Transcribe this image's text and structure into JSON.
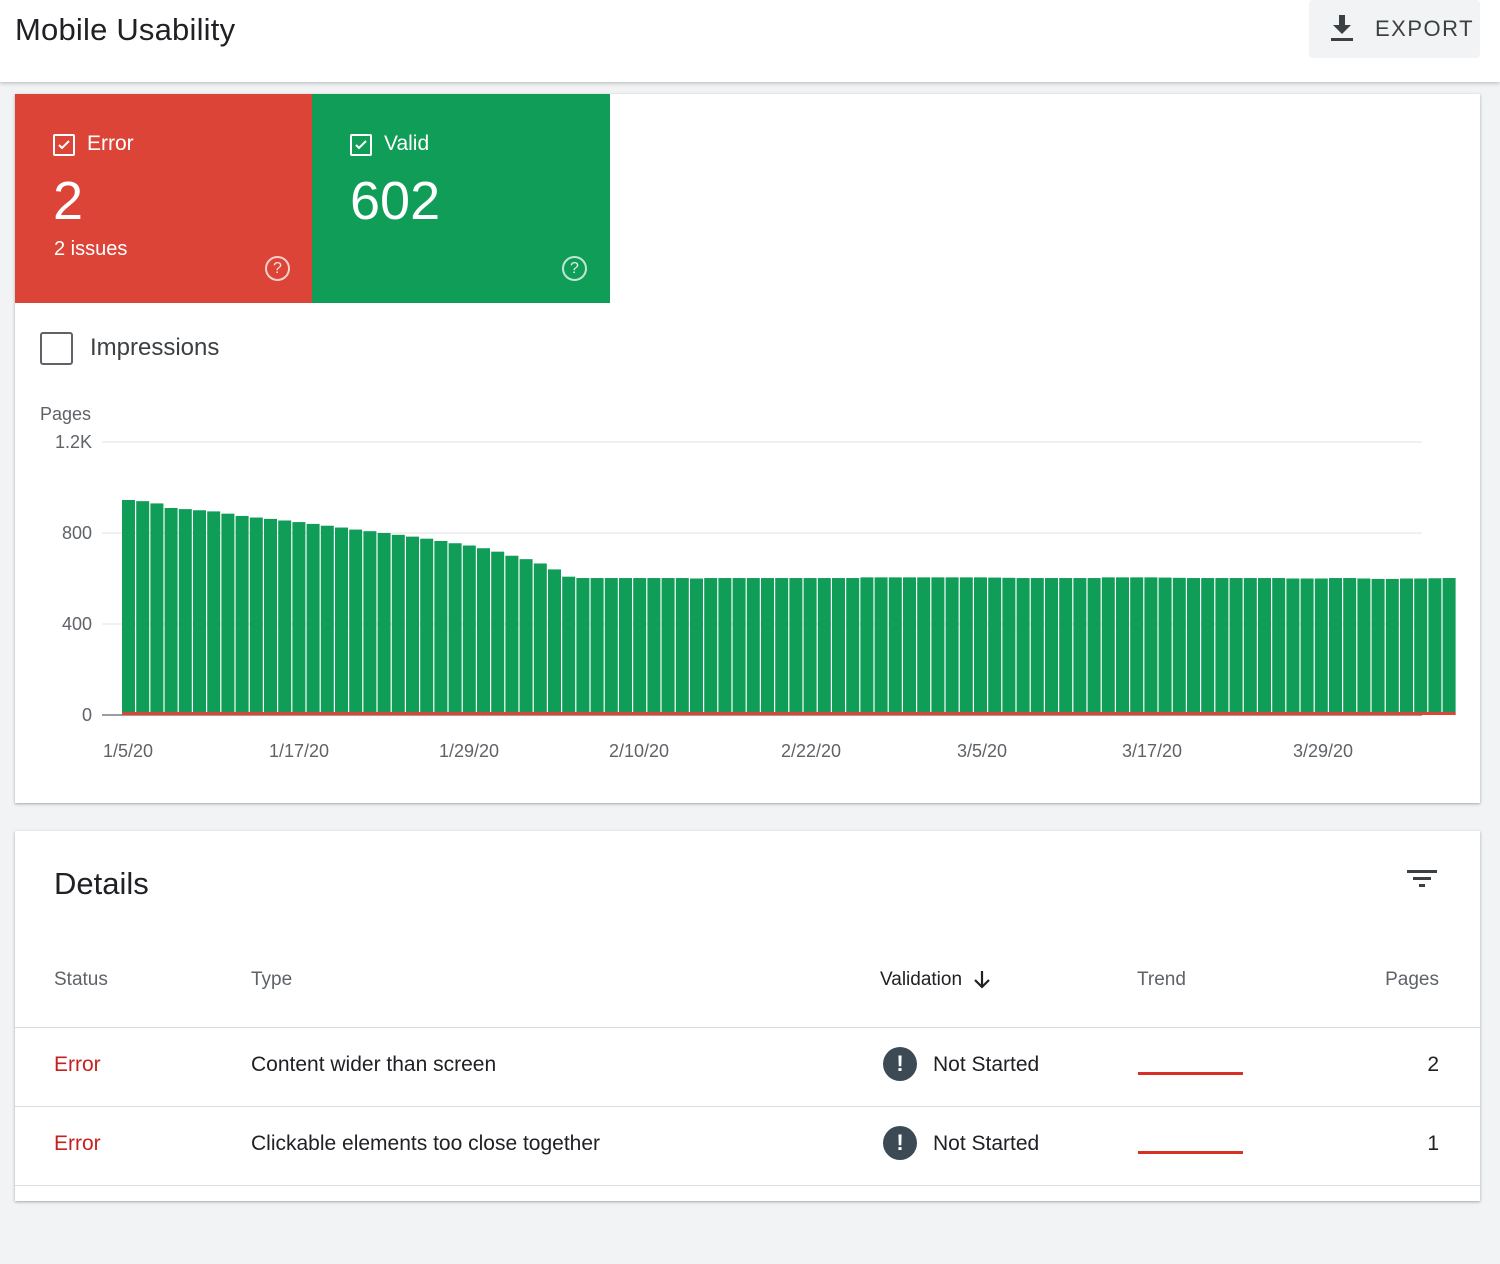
{
  "header": {
    "title": "Mobile Usability",
    "export_label": "EXPORT"
  },
  "summary": {
    "error": {
      "label": "Error",
      "value": "2",
      "sub": "2 issues",
      "help": "?"
    },
    "valid": {
      "label": "Valid",
      "value": "602",
      "help": "?"
    }
  },
  "impressions": {
    "label": "Impressions",
    "checked": false
  },
  "chart_data": {
    "type": "bar",
    "ylabel": "Pages",
    "ylim": [
      0,
      1200
    ],
    "yticks": [
      "1.2K",
      "800",
      "400",
      "0"
    ],
    "xtick_labels": [
      "1/5/20",
      "1/17/20",
      "1/29/20",
      "2/10/20",
      "2/22/20",
      "3/5/20",
      "3/17/20",
      "3/29/20"
    ],
    "series": [
      {
        "name": "Valid",
        "color": "#0f9d58",
        "values": [
          945,
          940,
          930,
          910,
          905,
          900,
          895,
          885,
          875,
          868,
          862,
          855,
          848,
          840,
          832,
          824,
          815,
          808,
          800,
          792,
          784,
          775,
          765,
          755,
          745,
          733,
          718,
          700,
          685,
          666,
          640,
          608,
          602,
          602,
          602,
          602,
          602,
          602,
          602,
          602,
          600,
          602,
          602,
          602,
          602,
          602,
          602,
          602,
          602,
          602,
          602,
          602,
          605,
          605,
          605,
          605,
          605,
          605,
          605,
          605,
          605,
          604,
          603,
          602,
          602,
          602,
          602,
          602,
          602,
          605,
          605,
          605,
          605,
          604,
          603,
          602,
          602,
          602,
          602,
          602,
          602,
          602,
          600,
          600,
          600,
          602,
          602,
          600,
          598,
          598,
          600,
          600,
          601,
          602
        ]
      },
      {
        "name": "Error",
        "color": "#db4437",
        "constant": 2
      }
    ]
  },
  "details": {
    "title": "Details",
    "columns": {
      "status": "Status",
      "type": "Type",
      "validation": "Validation",
      "trend": "Trend",
      "pages": "Pages"
    },
    "rows": [
      {
        "status": "Error",
        "type": "Content wider than screen",
        "validation": "Not Started",
        "pages": "2"
      },
      {
        "status": "Error",
        "type": "Clickable elements too close together",
        "validation": "Not Started",
        "pages": "1"
      }
    ],
    "validation_icon": "!"
  },
  "colors": {
    "error": "#db4437",
    "valid": "#0f9d58",
    "error_text": "#c5221f"
  }
}
